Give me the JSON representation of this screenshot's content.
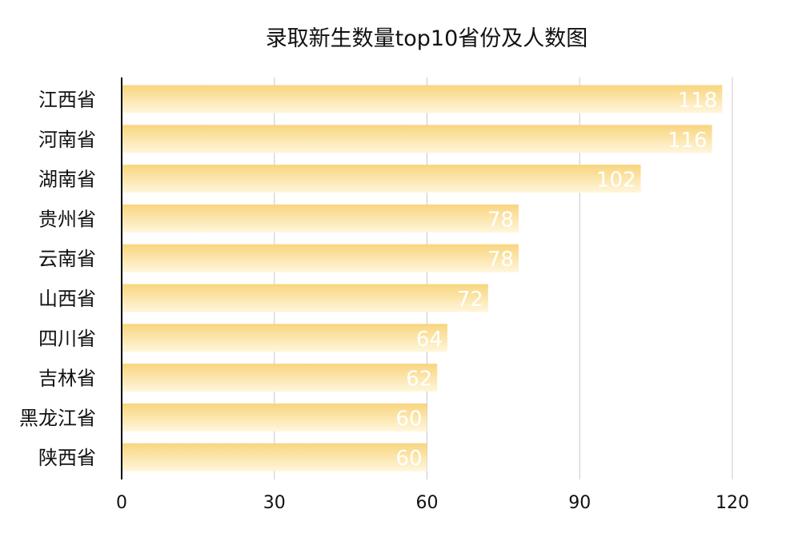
{
  "chart_data": {
    "type": "bar",
    "orientation": "horizontal",
    "title": "录取新生数量top10省份及人数图",
    "categories": [
      "江西省",
      "河南省",
      "湖南省",
      "贵州省",
      "云南省",
      "山西省",
      "四川省",
      "吉林省",
      "黑龙江省",
      "陕西省"
    ],
    "values": [
      118,
      116,
      102,
      78,
      78,
      72,
      64,
      62,
      60,
      60
    ],
    "xlabel": "",
    "ylabel": "",
    "xlim": [
      0,
      120
    ],
    "xticks": [
      0,
      30,
      60,
      90,
      120
    ],
    "grid": true,
    "legend": "none",
    "colors": {
      "bar_top": "#f8d57e",
      "bar_bottom": "#fff6dc",
      "grid": "#c8c8c8",
      "axis": "#000000"
    }
  }
}
